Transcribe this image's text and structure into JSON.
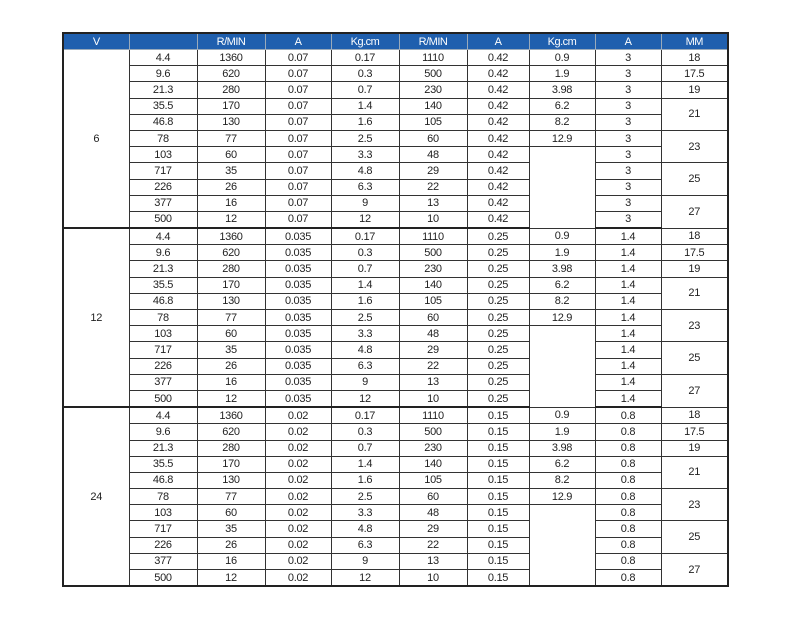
{
  "headers": [
    "V",
    "",
    "R/MIN",
    "A",
    "Kg.cm",
    "R/MIN",
    "A",
    "Kg.cm",
    "A",
    "MM"
  ],
  "colors": {
    "header_bg": "#1f5fae",
    "header_text": "#ffffff"
  },
  "groups": [
    {
      "voltage": "6",
      "rows": [
        [
          "4.4",
          "1360",
          "0.07",
          "0.17",
          "1110",
          "0.42",
          "0.9",
          "3"
        ],
        [
          "9.6",
          "620",
          "0.07",
          "0.3",
          "500",
          "0.42",
          "1.9",
          "3"
        ],
        [
          "21.3",
          "280",
          "0.07",
          "0.7",
          "230",
          "0.42",
          "3.98",
          "3"
        ],
        [
          "35.5",
          "170",
          "0.07",
          "1.4",
          "140",
          "0.42",
          "6.2",
          "3"
        ],
        [
          "46.8",
          "130",
          "0.07",
          "1.6",
          "105",
          "0.42",
          "8.2",
          "3"
        ],
        [
          "78",
          "77",
          "0.07",
          "2.5",
          "60",
          "0.42",
          "12.9",
          "3"
        ],
        [
          "103",
          "60",
          "0.07",
          "3.3",
          "48",
          "0.42",
          "",
          "3"
        ],
        [
          "717",
          "35",
          "0.07",
          "4.8",
          "29",
          "0.42",
          "",
          "3"
        ],
        [
          "226",
          "26",
          "0.07",
          "6.3",
          "22",
          "0.42",
          "",
          "3"
        ],
        [
          "377",
          "16",
          "0.07",
          "9",
          "13",
          "0.42",
          "",
          "3"
        ],
        [
          "500",
          "12",
          "0.07",
          "12",
          "10",
          "0.42",
          "",
          "3"
        ]
      ]
    },
    {
      "voltage": "12",
      "rows": [
        [
          "4.4",
          "1360",
          "0.035",
          "0.17",
          "1110",
          "0.25",
          "0.9",
          "1.4"
        ],
        [
          "9.6",
          "620",
          "0.035",
          "0.3",
          "500",
          "0.25",
          "1.9",
          "1.4"
        ],
        [
          "21.3",
          "280",
          "0.035",
          "0.7",
          "230",
          "0.25",
          "3.98",
          "1.4"
        ],
        [
          "35.5",
          "170",
          "0.035",
          "1.4",
          "140",
          "0.25",
          "6.2",
          "1.4"
        ],
        [
          "46.8",
          "130",
          "0.035",
          "1.6",
          "105",
          "0.25",
          "8.2",
          "1.4"
        ],
        [
          "78",
          "77",
          "0.035",
          "2.5",
          "60",
          "0.25",
          "12.9",
          "1.4"
        ],
        [
          "103",
          "60",
          "0.035",
          "3.3",
          "48",
          "0.25",
          "",
          "1.4"
        ],
        [
          "717",
          "35",
          "0.035",
          "4.8",
          "29",
          "0.25",
          "",
          "1.4"
        ],
        [
          "226",
          "26",
          "0.035",
          "6.3",
          "22",
          "0.25",
          "",
          "1.4"
        ],
        [
          "377",
          "16",
          "0.035",
          "9",
          "13",
          "0.25",
          "",
          "1.4"
        ],
        [
          "500",
          "12",
          "0.035",
          "12",
          "10",
          "0.25",
          "",
          "1.4"
        ]
      ]
    },
    {
      "voltage": "24",
      "rows": [
        [
          "4.4",
          "1360",
          "0.02",
          "0.17",
          "1110",
          "0.15",
          "0.9",
          "0.8"
        ],
        [
          "9.6",
          "620",
          "0.02",
          "0.3",
          "500",
          "0.15",
          "1.9",
          "0.8"
        ],
        [
          "21.3",
          "280",
          "0.02",
          "0.7",
          "230",
          "0.15",
          "3.98",
          "0.8"
        ],
        [
          "35.5",
          "170",
          "0.02",
          "1.4",
          "140",
          "0.15",
          "6.2",
          "0.8"
        ],
        [
          "46.8",
          "130",
          "0.02",
          "1.6",
          "105",
          "0.15",
          "8.2",
          "0.8"
        ],
        [
          "78",
          "77",
          "0.02",
          "2.5",
          "60",
          "0.15",
          "12.9",
          "0.8"
        ],
        [
          "103",
          "60",
          "0.02",
          "3.3",
          "48",
          "0.15",
          "",
          "0.8"
        ],
        [
          "717",
          "35",
          "0.02",
          "4.8",
          "29",
          "0.15",
          "",
          "0.8"
        ],
        [
          "226",
          "26",
          "0.02",
          "6.3",
          "22",
          "0.15",
          "",
          "0.8"
        ],
        [
          "377",
          "16",
          "0.02",
          "9",
          "13",
          "0.15",
          "",
          "0.8"
        ],
        [
          "500",
          "12",
          "0.02",
          "12",
          "10",
          "0.15",
          "",
          "0.8"
        ]
      ]
    }
  ],
  "mm_values": [
    {
      "value": "18",
      "rows": 1
    },
    {
      "value": "17.5",
      "rows": 1
    },
    {
      "value": "19",
      "rows": 1
    },
    {
      "value": "21",
      "rows": 2
    },
    {
      "value": "23",
      "rows": 2
    },
    {
      "value": "25",
      "rows": 2
    },
    {
      "value": "27",
      "rows": 2
    }
  ]
}
